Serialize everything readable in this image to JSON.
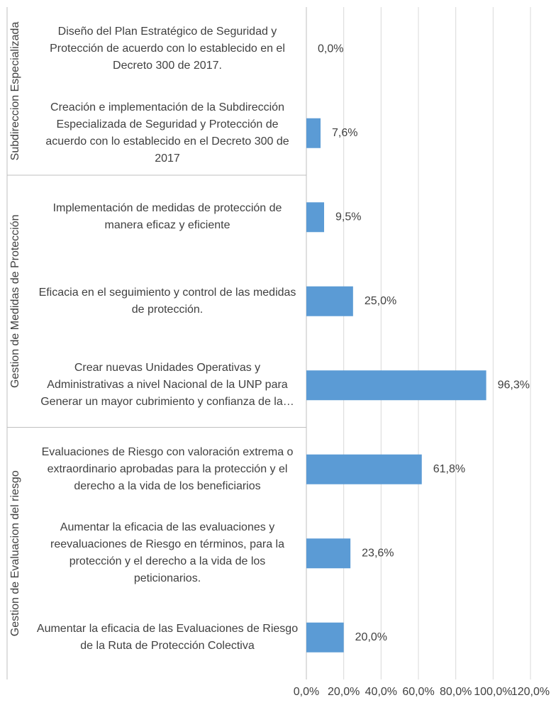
{
  "chart_data": {
    "type": "barh",
    "categories": [
      "Diseño del Plan Estratégico de Seguridad y Protección de acuerdo con lo establecido en el Decreto 300 de 2017.",
      "Creación e implementación de la Subdirección Especializada de Seguridad y Protección  de acuerdo con lo establecido en el Decreto 300 de 2017",
      "Implementación de medidas de protección de manera eficaz y eficiente",
      "Eficacia en el seguimiento y control de las medidas de protección.",
      "Crear nuevas Unidades Operativas y Administrativas a nivel Nacional de la UNP para Generar un mayor cubrimiento y confianza de la…",
      "Evaluaciones de Riesgo con valoración extrema o extraordinario aprobadas para la protección y el derecho a la vida de los beneficiarios",
      "Aumentar la  eficacia de las evaluaciones y reevaluaciones de Riesgo en términos, para la protección y el derecho a la vida de los peticionarios.",
      "Aumentar la  eficacia de las Evaluaciones de Riesgo de la Ruta de Protección Colectiva"
    ],
    "groups": [
      {
        "name": "Subdireccion Especializada",
        "count": 2
      },
      {
        "name": "Gestion de Medidas de Protección",
        "count": 3
      },
      {
        "name": "Gestion de Evaluacion del riesgo",
        "count": 3
      }
    ],
    "values": [
      0,
      7.6,
      9.5,
      25,
      96.3,
      61.8,
      23.6,
      20
    ],
    "value_labels": [
      "0,0%",
      "7,6%",
      "9,5%",
      "25,0%",
      "96,3%",
      "61,8%",
      "23,6%",
      "20,0%"
    ],
    "color": "#5b9bd5",
    "xlim": [
      0,
      120
    ],
    "xticks": [
      {
        "value": 0,
        "label": "0,0%"
      },
      {
        "value": 20,
        "label": "20,0%"
      },
      {
        "value": 40,
        "label": "40,0%"
      },
      {
        "value": 60,
        "label": "60,0%"
      },
      {
        "value": 80,
        "label": "80,0%"
      },
      {
        "value": 100,
        "label": "100,0%"
      },
      {
        "value": 120,
        "label": "120,0%"
      }
    ],
    "grid": true
  }
}
